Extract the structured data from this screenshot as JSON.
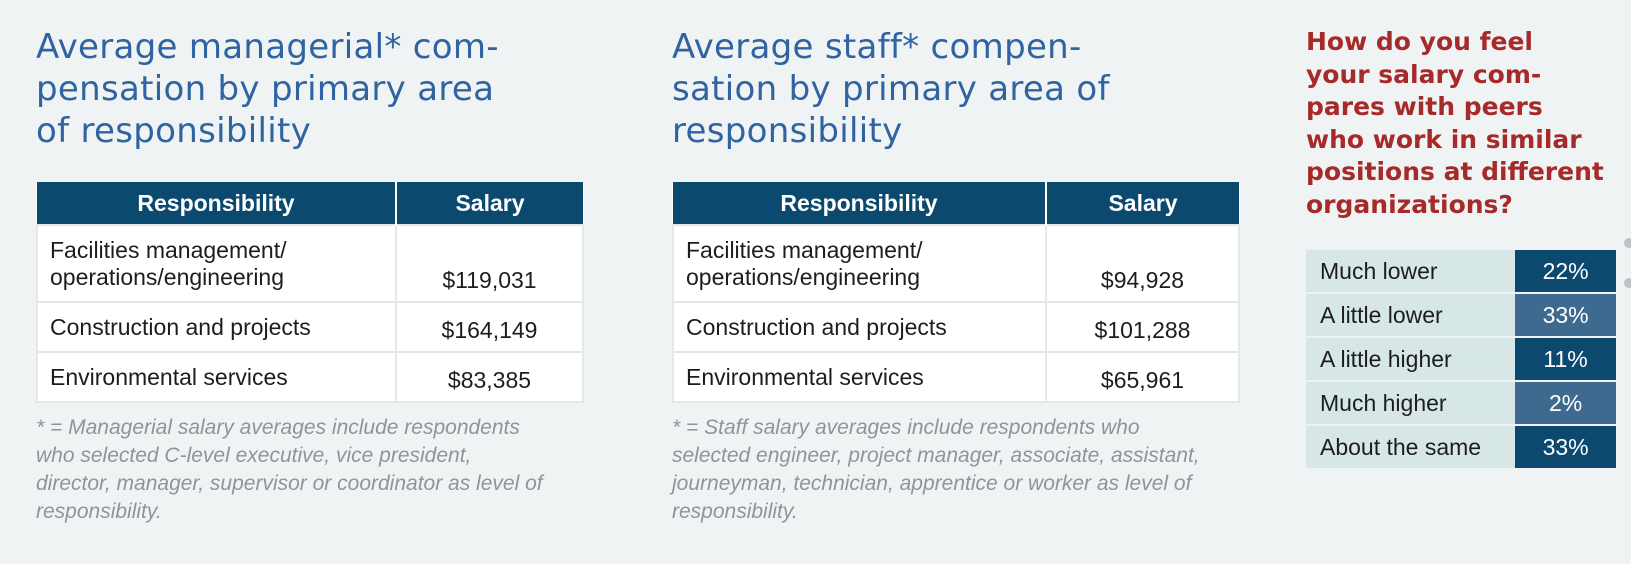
{
  "managerial": {
    "heading_lines": [
      "Average managerial* com-",
      "pensation by primary area",
      "of responsibility"
    ],
    "headers": [
      "Responsibility",
      "Salary"
    ],
    "rows": [
      {
        "responsibility_lines": [
          "Facilities management/",
          "operations/engineering"
        ],
        "salary": "$119,031"
      },
      {
        "responsibility_lines": [
          "Construction and projects"
        ],
        "salary": "$164,149"
      },
      {
        "responsibility_lines": [
          "Environmental services"
        ],
        "salary": "$83,385"
      }
    ],
    "footnote_lines": [
      "* = Managerial salary averages include respondents",
      "who selected C-level executive, vice president,",
      "director, manager, supervisor or coordinator as level of",
      "responsibility."
    ]
  },
  "staff": {
    "heading_lines": [
      "Average staff* compen-",
      "sation by primary area of",
      "responsibility"
    ],
    "headers": [
      "Responsibility",
      "Salary"
    ],
    "rows": [
      {
        "responsibility_lines": [
          "Facilities management/",
          "operations/engineering"
        ],
        "salary": "$94,928"
      },
      {
        "responsibility_lines": [
          "Construction and projects"
        ],
        "salary": "$101,288"
      },
      {
        "responsibility_lines": [
          "Environmental services"
        ],
        "salary": "$65,961"
      }
    ],
    "footnote_lines": [
      "* = Staff salary averages include respondents who",
      "selected engineer, project manager, associate, assistant,",
      "journeyman, technician, apprentice or worker as level of",
      "responsibility."
    ]
  },
  "peers": {
    "question_lines": [
      "How do you feel",
      "your salary com-",
      "pares with peers",
      "who work in similar",
      "positions at different",
      "organizations?"
    ],
    "rows": [
      {
        "label": "Much lower",
        "value": "22%"
      },
      {
        "label": "A little lower",
        "value": "33%"
      },
      {
        "label": "A little higher",
        "value": "11%"
      },
      {
        "label": "Much higher",
        "value": "2%"
      },
      {
        "label": "About the same",
        "value": "33%"
      }
    ]
  },
  "colors": {
    "heading_blue": "#2f63a1",
    "header_navy": "#0b496f",
    "question_red": "#a62a2a",
    "pct_dark": "#0b496f",
    "pct_light": "#3e6a8f",
    "label_bg": "#d7e7e7"
  },
  "chart_data": [
    {
      "type": "table",
      "title": "Average managerial* compensation by primary area of responsibility",
      "columns": [
        "Responsibility",
        "Salary"
      ],
      "rows": [
        [
          "Facilities management/ operations/engineering",
          119031
        ],
        [
          "Construction and projects",
          164149
        ],
        [
          "Environmental services",
          83385
        ]
      ]
    },
    {
      "type": "table",
      "title": "Average staff* compensation by primary area of responsibility",
      "columns": [
        "Responsibility",
        "Salary"
      ],
      "rows": [
        [
          "Facilities management/ operations/engineering",
          94928
        ],
        [
          "Construction and projects",
          101288
        ],
        [
          "Environmental services",
          65961
        ]
      ]
    },
    {
      "type": "table",
      "title": "How do you feel your salary compares with peers who work in similar positions at different organizations?",
      "categories": [
        "Much lower",
        "A little lower",
        "A little higher",
        "Much higher",
        "About the same"
      ],
      "values": [
        22,
        33,
        11,
        2,
        33
      ]
    }
  ]
}
